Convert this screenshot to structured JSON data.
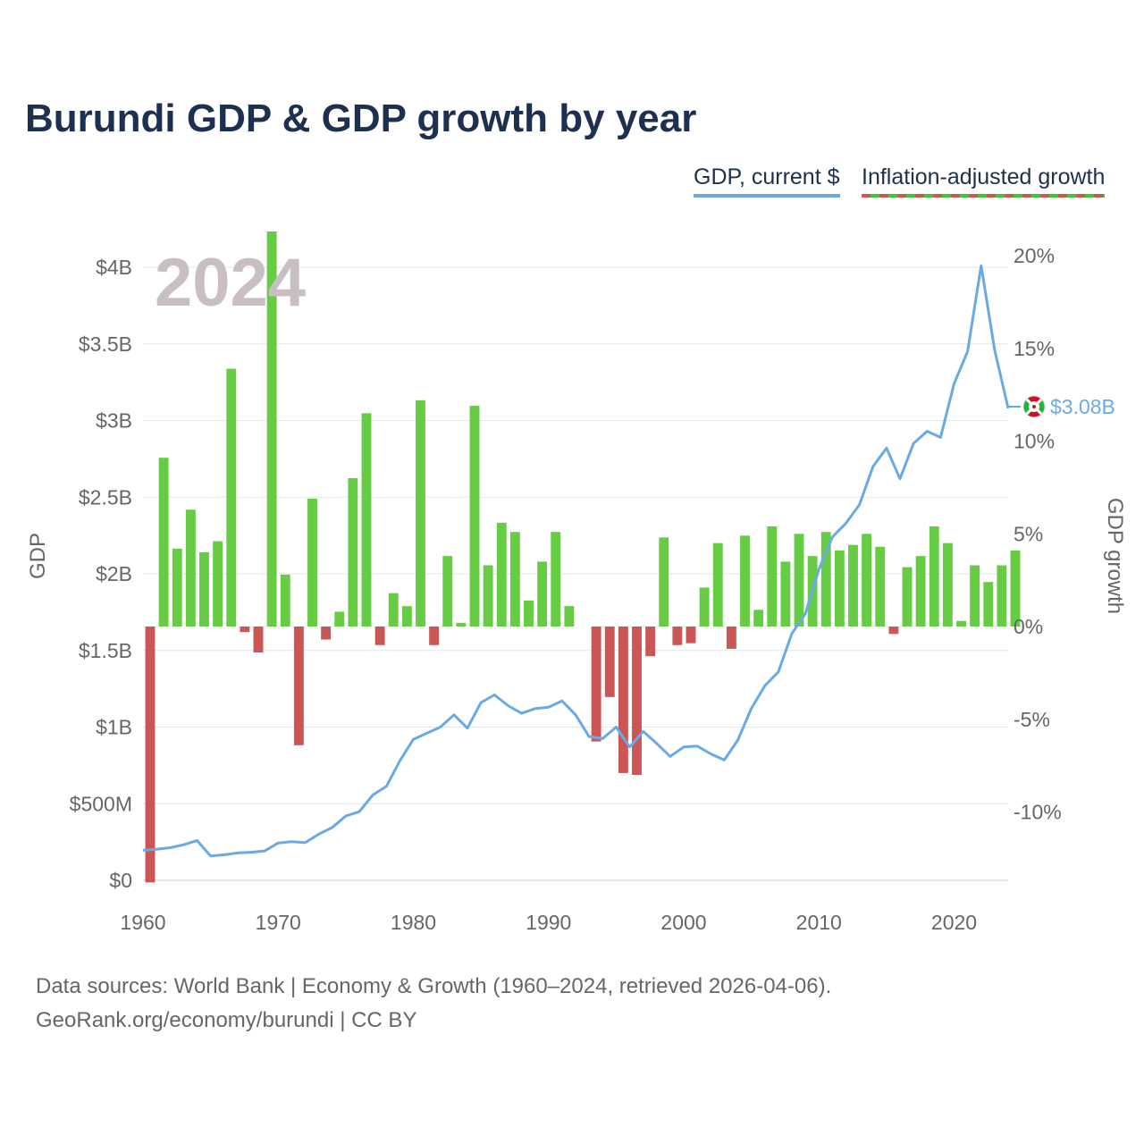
{
  "title": "Burundi GDP & GDP growth by year",
  "legend": {
    "gdp": "GDP, current $",
    "growth": "Inflation-adjusted growth"
  },
  "colors": {
    "gdp_line": "#6aaae4",
    "growth_positive": "#66cc44",
    "growth_negative": "#cc5555",
    "grid": "#e6e6e6",
    "axis_text": "#666666",
    "title": "#1d3050",
    "year_watermark": "#c9bfc3"
  },
  "year_label": "2024",
  "end_label": "$3.08B",
  "flag_icon": "burundi-flag-icon",
  "sources": {
    "line1": "Data sources: World Bank | Economy & Growth (1960–2024, retrieved 2026-04-06).",
    "line2": "GeoRank.org/economy/burundi | CC BY"
  },
  "chart_data": {
    "type": "bar+line",
    "x_label": "",
    "x_range": [
      1960,
      2024
    ],
    "x_ticks": [
      "1960",
      "1970",
      "1980",
      "1990",
      "2000",
      "2010",
      "2020"
    ],
    "y_left": {
      "label": "GDP",
      "range": [
        0,
        4200000000
      ],
      "ticks": [
        0,
        500000000,
        1000000000,
        1500000000,
        2000000000,
        2500000000,
        3000000000,
        3500000000,
        4000000000
      ],
      "tick_labels": [
        "$0",
        "$500M",
        "$1B",
        "$1.5B",
        "$2B",
        "$2.5B",
        "$3B",
        "$3.5B",
        "$4B"
      ]
    },
    "y_right": {
      "label": "GDP growth",
      "range": [
        -14,
        22
      ],
      "ticks": [
        -10,
        -5,
        0,
        5,
        10,
        15,
        20
      ],
      "tick_labels": [
        "-10%",
        "-5%",
        "0%",
        "5%",
        "10%",
        "15%",
        "20%"
      ]
    },
    "years": [
      1960,
      1961,
      1962,
      1963,
      1964,
      1965,
      1966,
      1967,
      1968,
      1969,
      1970,
      1971,
      1972,
      1973,
      1974,
      1975,
      1976,
      1977,
      1978,
      1979,
      1980,
      1981,
      1982,
      1983,
      1984,
      1985,
      1986,
      1987,
      1988,
      1989,
      1990,
      1991,
      1992,
      1993,
      1994,
      1995,
      1996,
      1997,
      1998,
      1999,
      2000,
      2001,
      2002,
      2003,
      2004,
      2005,
      2006,
      2007,
      2008,
      2009,
      2010,
      2011,
      2012,
      2013,
      2014,
      2015,
      2016,
      2017,
      2018,
      2019,
      2020,
      2021,
      2022,
      2023,
      2024
    ],
    "series": [
      {
        "name": "GDP, current $",
        "type": "line",
        "values": [
          196000000,
          203000000,
          213000000,
          232000000,
          260000000,
          159000000,
          167000000,
          179000000,
          183000000,
          192000000,
          244000000,
          252000000,
          246000000,
          301000000,
          345000000,
          420000000,
          448000000,
          557000000,
          613000000,
          780000000,
          920000000,
          960000000,
          1000000000,
          1080000000,
          993000000,
          1160000000,
          1210000000,
          1140000000,
          1090000000,
          1120000000,
          1130000000,
          1170000000,
          1080000000,
          938000000,
          925000000,
          1000000000,
          870000000,
          972000000,
          893000000,
          808000000,
          870000000,
          876000000,
          825000000,
          785000000,
          915000000,
          1120000000,
          1270000000,
          1360000000,
          1610000000,
          1740000000,
          2030000000,
          2240000000,
          2330000000,
          2450000000,
          2700000000,
          2820000000,
          2620000000,
          2850000000,
          2930000000,
          2890000000,
          3240000000,
          3450000000,
          4010000000,
          3460000000,
          3080000000
        ]
      },
      {
        "name": "Inflation-adjusted growth",
        "type": "bar",
        "values": [
          -13.8,
          9.1,
          4.2,
          6.3,
          4.0,
          4.6,
          13.9,
          -0.3,
          -1.4,
          21.3,
          2.8,
          -6.4,
          6.9,
          -0.7,
          0.8,
          8.0,
          11.5,
          -1.0,
          1.8,
          1.1,
          12.2,
          -1.0,
          3.8,
          0.2,
          11.9,
          3.3,
          5.6,
          5.1,
          1.4,
          3.5,
          5.1,
          1.1,
          0,
          -6.2,
          -3.8,
          -7.9,
          -8.0,
          -1.6,
          4.8,
          -1.0,
          -0.9,
          2.1,
          4.5,
          -1.2,
          4.9,
          0.9,
          5.4,
          3.5,
          5.0,
          3.8,
          5.1,
          4.1,
          4.4,
          5.0,
          4.3,
          -0.4,
          3.2,
          3.8,
          5.4,
          4.5,
          0.3,
          3.3,
          2.4,
          3.3,
          4.1
        ]
      }
    ]
  }
}
